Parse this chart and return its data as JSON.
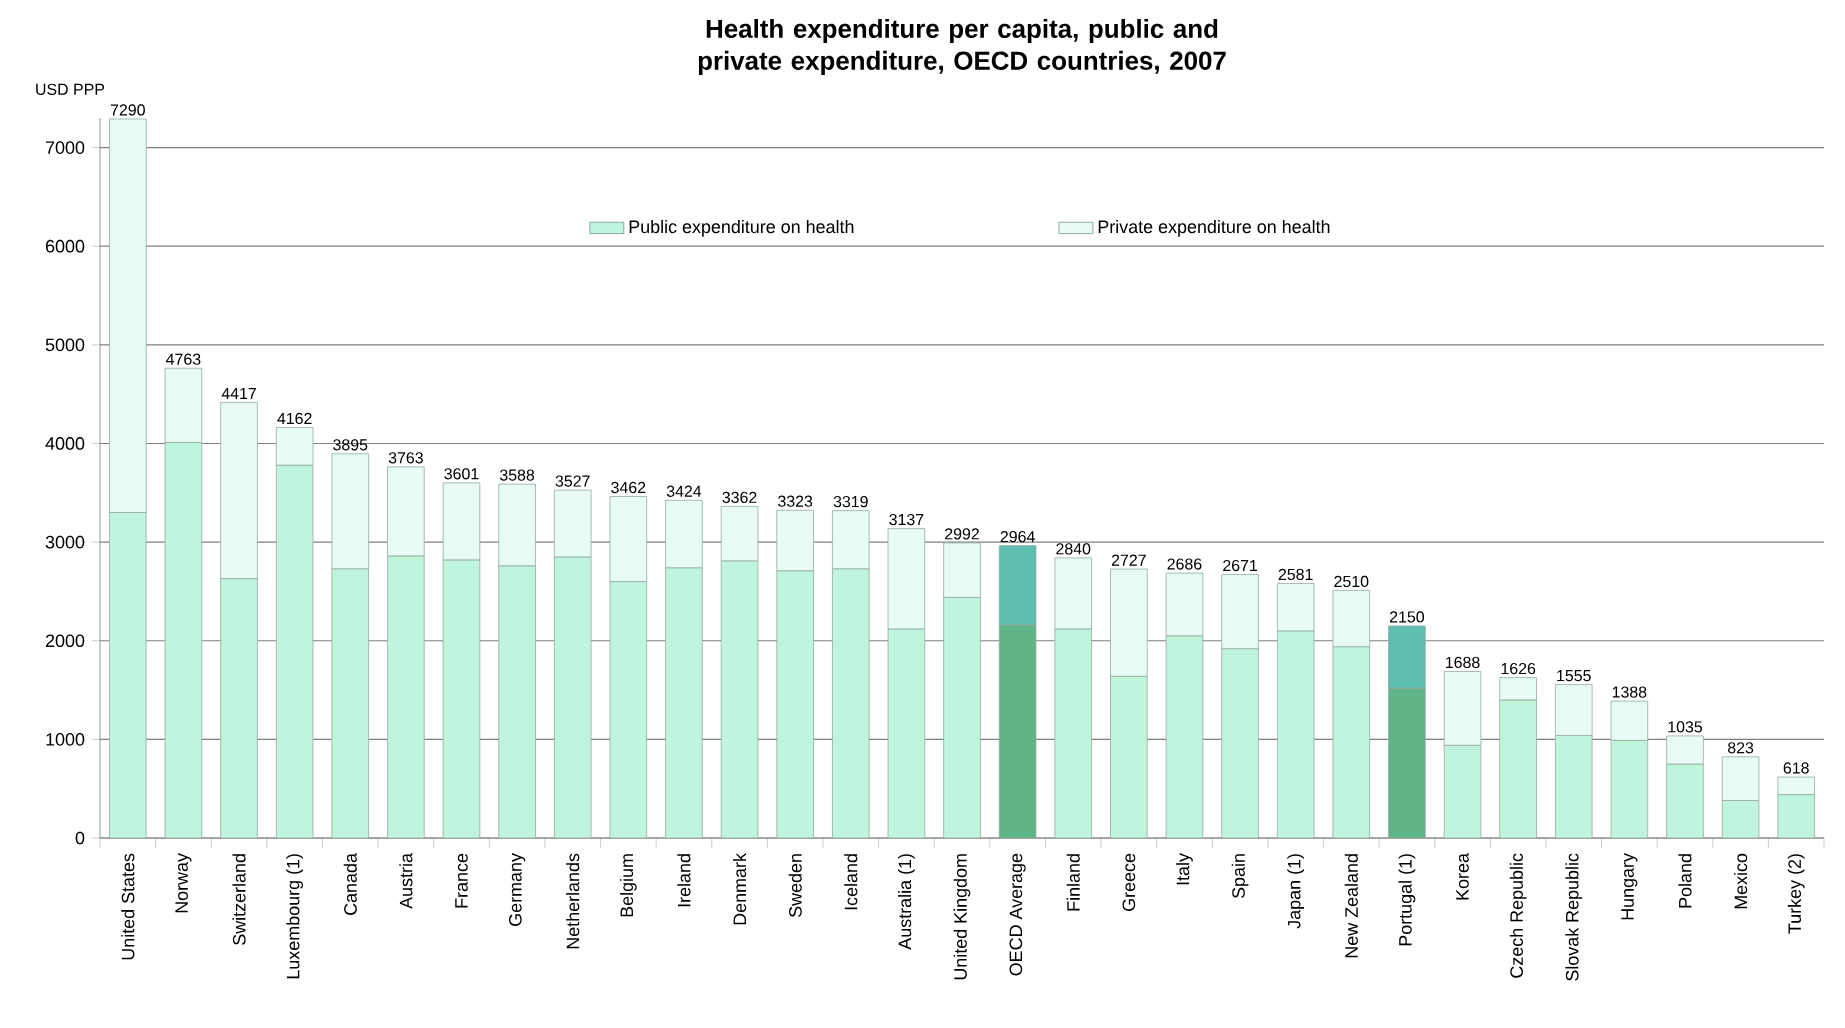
{
  "chart_data": {
    "type": "bar",
    "stacked": true,
    "title": "Health expenditure per capita, public and private expenditure, OECD countries, 2007",
    "ylabel": "USD PPP",
    "categories": [
      "United States",
      "Norway",
      "Switzerland",
      "Luxembourg (1)",
      "Canada",
      "Austria",
      "France",
      "Germany",
      "Netherlands",
      "Belgium",
      "Ireland",
      "Denmark",
      "Sweden",
      "Iceland",
      "Australia (1)",
      "United Kingdom",
      "OECD Average",
      "Finland",
      "Greece",
      "Italy",
      "Spain",
      "Japan (1)",
      "New Zealand",
      "Portugal (1)",
      "Korea",
      "Czech Republic",
      "Slovak Republic",
      "Hungary",
      "Poland",
      "Mexico",
      "Turkey (2)"
    ],
    "series": [
      {
        "name": "Public expenditure on health",
        "color": "#bff5dc",
        "values": [
          3300,
          4010,
          2630,
          3780,
          2730,
          2860,
          2820,
          2760,
          2850,
          2600,
          2740,
          2810,
          2710,
          2730,
          2120,
          2440,
          2160,
          2120,
          1640,
          2050,
          1920,
          2100,
          1940,
          1520,
          940,
          1400,
          1040,
          990,
          750,
          380,
          440
        ],
        "colors": [
          "#bff5dc",
          "#bff5dc",
          "#bff5dc",
          "#bff5dc",
          "#bff5dc",
          "#bff5dc",
          "#bff5dc",
          "#bff5dc",
          "#bff5dc",
          "#bff5dc",
          "#bff5dc",
          "#bff5dc",
          "#bff5dc",
          "#bff5dc",
          "#bff5dc",
          "#bff5dc",
          "#5fb587",
          "#bff5dc",
          "#bff5dc",
          "#bff5dc",
          "#bff5dc",
          "#bff5dc",
          "#bff5dc",
          "#5fb587",
          "#bff5dc",
          "#bff5dc",
          "#bff5dc",
          "#bff5dc",
          "#bff5dc",
          "#bff5dc",
          "#bff5dc"
        ]
      },
      {
        "name": "Private expenditure on health",
        "color": "#e6fcf5",
        "values": [
          3990,
          753,
          1787,
          382,
          1165,
          903,
          781,
          828,
          677,
          862,
          684,
          552,
          613,
          589,
          1017,
          552,
          804,
          720,
          1087,
          636,
          751,
          481,
          570,
          630,
          748,
          226,
          515,
          398,
          285,
          443,
          178
        ],
        "colors": [
          "#e6fcf5",
          "#e6fcf5",
          "#e6fcf5",
          "#e6fcf5",
          "#e6fcf5",
          "#e6fcf5",
          "#e6fcf5",
          "#e6fcf5",
          "#e6fcf5",
          "#e6fcf5",
          "#e6fcf5",
          "#e6fcf5",
          "#e6fcf5",
          "#e6fcf5",
          "#e6fcf5",
          "#e6fcf5",
          "#5cbfb0",
          "#e6fcf5",
          "#e6fcf5",
          "#e6fcf5",
          "#e6fcf5",
          "#e6fcf5",
          "#e6fcf5",
          "#5cbfb0",
          "#e6fcf5",
          "#e6fcf5",
          "#e6fcf5",
          "#e6fcf5",
          "#e6fcf5",
          "#e6fcf5",
          "#e6fcf5"
        ]
      }
    ],
    "totals": [
      "7290",
      "4763",
      "4417",
      "4162",
      "3895",
      "3763",
      "3601",
      "3588",
      "3527",
      "3462",
      "3424",
      "3362",
      "3323",
      "3319",
      "3137",
      "2992",
      "2964",
      "2840",
      "2727",
      "2686",
      "2671",
      "2581",
      "2510",
      "2150",
      "1688",
      "1626",
      "1555",
      "1388",
      "1035",
      "823",
      "618"
    ],
    "ylim": [
      0,
      7300
    ],
    "yticks": [
      0,
      1000,
      2000,
      3000,
      4000,
      5000,
      6000,
      7000
    ],
    "grid": "y",
    "legend": "top"
  }
}
